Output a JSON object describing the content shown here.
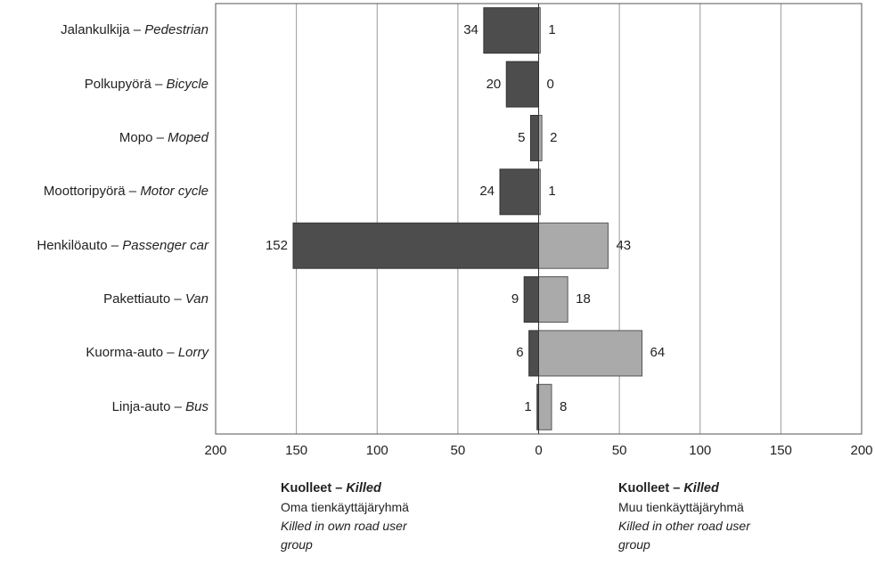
{
  "chart_data": {
    "type": "bar",
    "orientation": "horizontal-diverging",
    "categories": [
      {
        "fi": "Jalankulkija",
        "en": "Pedestrian"
      },
      {
        "fi": "Polkupyörä",
        "en": "Bicycle"
      },
      {
        "fi": "Mopo",
        "en": "Moped"
      },
      {
        "fi": "Moottoripyörä",
        "en": "Motor cycle"
      },
      {
        "fi": "Henkilöauto",
        "en": "Passenger car"
      },
      {
        "fi": "Pakettiauto",
        "en": "Van"
      },
      {
        "fi": "Kuorma-auto",
        "en": "Lorry"
      },
      {
        "fi": "Linja-auto",
        "en": "Bus"
      }
    ],
    "separator": " – ",
    "series": [
      {
        "values": [
          34,
          20,
          5,
          24,
          152,
          9,
          6,
          1
        ],
        "side": "left",
        "color": "#4d4d4d"
      },
      {
        "values": [
          1,
          0,
          2,
          1,
          43,
          18,
          64,
          8
        ],
        "side": "right",
        "color": "#aaaaaa"
      }
    ],
    "xlim": [
      -200,
      200
    ],
    "x_ticks": [
      "200",
      "150",
      "100",
      "50",
      "0",
      "50",
      "100",
      "150",
      "200"
    ],
    "x_tick_values": [
      -200,
      -150,
      -100,
      -50,
      0,
      50,
      100,
      150,
      200
    ],
    "grid": true,
    "legend_notes": [
      {
        "heading_fi": "Kuolleet",
        "heading_en": "Killed",
        "line_fi": "Oma tienkäyttäjäryhmä",
        "line_en_1": "Killed in own road user",
        "line_en_2": "group"
      },
      {
        "heading_fi": "Kuolleet",
        "heading_en": "Killed",
        "line_fi": "Muu tienkäyttäjäryhmä",
        "line_en_1": "Killed in other road user",
        "line_en_2": "group"
      }
    ]
  }
}
